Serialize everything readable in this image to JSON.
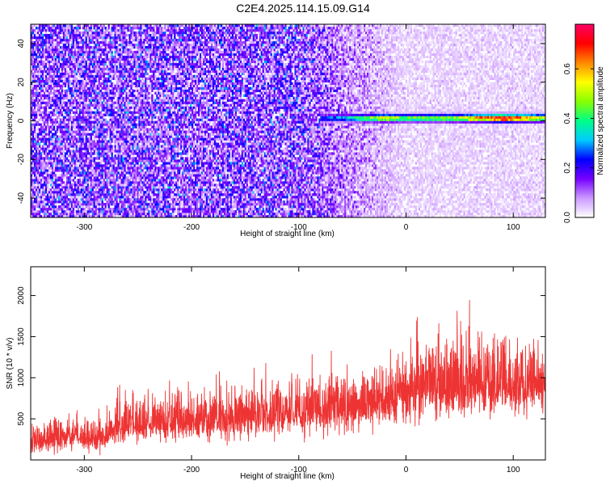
{
  "title": "C2E4.2025.114.15.09.G14",
  "chart_data": [
    {
      "type": "heatmap",
      "xlabel": "Height of straight line (km)",
      "ylabel": "Frequency (Hz)",
      "xlim": [
        -350,
        130
      ],
      "ylim": [
        -50,
        50
      ],
      "x_ticks": [
        -300,
        -200,
        -100,
        0,
        100
      ],
      "y_ticks": [
        -40,
        -20,
        0,
        20,
        40
      ],
      "colorbar": {
        "label": "Normalized spectral amplitude",
        "range": [
          0.0,
          0.78
        ],
        "ticks": [
          0.0,
          0.2,
          0.4,
          0.6
        ],
        "colors": [
          "#ffffff",
          "#cc99ff",
          "#7700ff",
          "#0000ff",
          "#00ccff",
          "#00ff88",
          "#88ff00",
          "#ffff00",
          "#ff8800",
          "#ff0000",
          "#ff0066"
        ]
      },
      "noise": {
        "level_by_height": [
          {
            "x": -350,
            "amplitude": 0.12
          },
          {
            "x": -100,
            "amplitude": 0.12
          },
          {
            "x": -50,
            "amplitude": 0.07
          },
          {
            "x": 0,
            "amplitude": 0.03
          },
          {
            "x": 130,
            "amplitude": 0.03
          }
        ]
      },
      "signal_band": {
        "x_start": -80,
        "x_end": 130,
        "frequency": 1.5,
        "profile": [
          {
            "x": -80,
            "amplitude": 0.25
          },
          {
            "x": -60,
            "amplitude": 0.3
          },
          {
            "x": -20,
            "amplitude": 0.55
          },
          {
            "x": 0,
            "amplitude": 0.45
          },
          {
            "x": 50,
            "amplitude": 0.5
          },
          {
            "x": 90,
            "amplitude": 0.78
          },
          {
            "x": 130,
            "amplitude": 0.5
          }
        ]
      }
    },
    {
      "type": "line",
      "xlabel": "Height of straight line (km)",
      "ylabel": "SNR (10 * v/v)",
      "xlim": [
        -350,
        130
      ],
      "ylim": [
        0,
        2350
      ],
      "x_ticks": [
        -300,
        -200,
        -100,
        0,
        100
      ],
      "y_ticks": [
        500,
        1000,
        1500,
        2000
      ],
      "color": "#ee3333",
      "envelope": [
        {
          "x": -350,
          "lower": 0,
          "mean": 230,
          "upper": 600
        },
        {
          "x": -280,
          "lower": 30,
          "mean": 300,
          "upper": 650
        },
        {
          "x": -270,
          "lower": 100,
          "mean": 420,
          "upper": 900
        },
        {
          "x": -200,
          "lower": 130,
          "mean": 470,
          "upper": 1050
        },
        {
          "x": -100,
          "lower": 150,
          "mean": 560,
          "upper": 1200
        },
        {
          "x": -30,
          "lower": 230,
          "mean": 700,
          "upper": 1350
        },
        {
          "x": 20,
          "lower": 330,
          "mean": 850,
          "upper": 1700
        },
        {
          "x": 60,
          "lower": 380,
          "mean": 880,
          "upper": 2000
        },
        {
          "x": 130,
          "lower": 450,
          "mean": 900,
          "upper": 1650
        }
      ]
    }
  ]
}
